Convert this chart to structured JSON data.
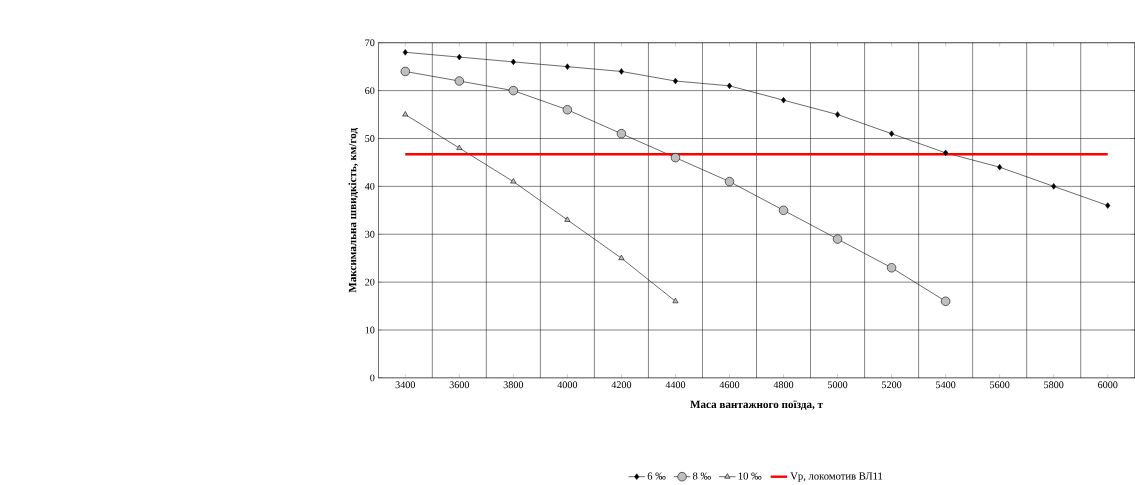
{
  "chart_data": {
    "type": "line",
    "xlabel": "Маса вантажного поїзда, т",
    "ylabel": "Максимальна швидкість, км/год",
    "categories": [
      "3400",
      "3600",
      "3800",
      "4000",
      "4200",
      "4400",
      "4600",
      "4800",
      "5000",
      "5200",
      "5400",
      "5600",
      "5800",
      "6000"
    ],
    "series": [
      {
        "name": "6 ‰",
        "color": "#000000",
        "marker": "diamond",
        "values": [
          68,
          67,
          66,
          65,
          64,
          62,
          61,
          58,
          55,
          51,
          47,
          44,
          40,
          36
        ]
      },
      {
        "name": "8 ‰",
        "color": "#000000",
        "marker": "circle",
        "values": [
          64,
          62,
          60,
          56,
          51,
          46,
          41,
          35,
          29,
          23,
          16,
          null,
          null,
          null
        ]
      },
      {
        "name": "10 ‰",
        "color": "#000000",
        "marker": "triangle",
        "values": [
          55,
          48,
          41,
          33,
          25,
          16,
          null,
          null,
          null,
          null,
          null,
          null,
          null,
          null
        ]
      }
    ],
    "ref_lines": [
      {
        "axis": "y",
        "value": 46.7,
        "label": "Vр, локомотив ВЛ11",
        "color": "#ff0000"
      }
    ],
    "ylim": [
      0,
      70
    ],
    "yticks": [
      0,
      10,
      20,
      30,
      40,
      50,
      60,
      70
    ],
    "grid": true,
    "legend": "bottom"
  }
}
